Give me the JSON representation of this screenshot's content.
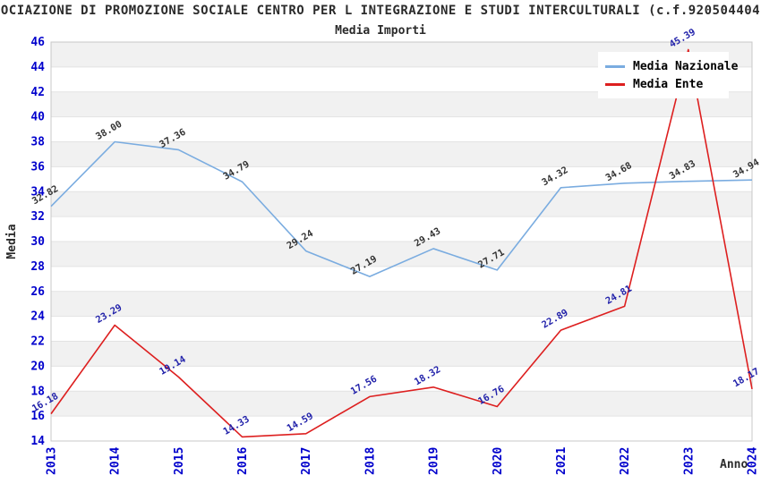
{
  "title": "OCIAZIONE DI PROMOZIONE SOCIALE CENTRO PER L INTEGRAZIONE E STUDI INTERCULTURALI (c.f.920504404",
  "subtitle": "Media Importi",
  "legend": {
    "items": [
      {
        "label": "Media Nazionale",
        "color": "#7AACE0"
      },
      {
        "label": "Media Ente",
        "color": "#DD1F1F"
      }
    ]
  },
  "axes": {
    "y_title": "Media",
    "x_title": "Anno",
    "tick_color": "#0000CC"
  },
  "colors": {
    "band_gray": "#F1F1F1",
    "gridline": "#E3E3E3",
    "plot_border": "#C8C8C8",
    "title_text": "#2B2B2B"
  },
  "chart_data": {
    "type": "line",
    "title": "Media Importi",
    "xlabel": "Anno",
    "ylabel": "Media",
    "x": [
      2013,
      2014,
      2015,
      2016,
      2017,
      2018,
      2019,
      2020,
      2021,
      2022,
      2023,
      2024
    ],
    "series": [
      {
        "name": "Media Nazionale",
        "color": "#7AACE0",
        "label_color": "#333333",
        "values": [
          32.82,
          38.0,
          37.36,
          34.79,
          29.24,
          27.19,
          29.43,
          27.71,
          34.32,
          34.68,
          34.83,
          34.94
        ]
      },
      {
        "name": "Media Ente",
        "color": "#DD1F1F",
        "label_color": "#2222AA",
        "values": [
          16.18,
          23.29,
          19.14,
          14.33,
          14.59,
          17.56,
          18.32,
          16.76,
          22.89,
          24.81,
          45.39,
          18.17
        ]
      }
    ],
    "ylim": [
      14,
      46
    ],
    "ytick_step": 2,
    "grid": true,
    "grid_style": "alternating-bands",
    "legend_position": "top-right",
    "point_labels": "2-decimals"
  }
}
